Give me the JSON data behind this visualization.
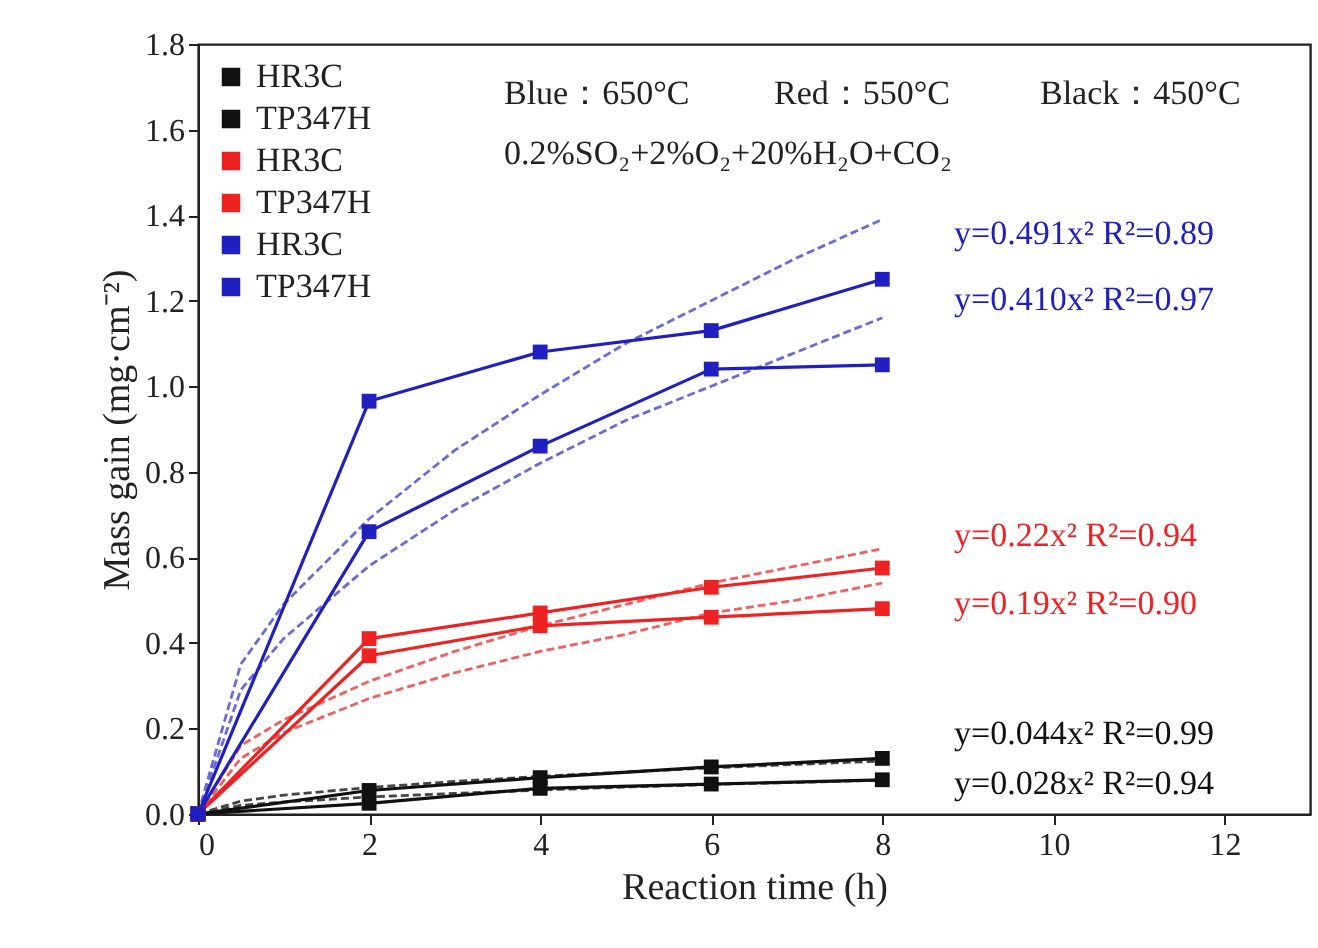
{
  "chart_data": {
    "type": "line",
    "xlabel": "Reaction time (h)",
    "ylabel": "Mass gain (mg·cm⁻²)",
    "x": [
      0,
      2,
      4,
      6,
      8
    ],
    "series": [
      {
        "name": "HR3C",
        "color": "#111111",
        "values": [
          0,
          0.025,
          0.06,
          0.07,
          0.08
        ]
      },
      {
        "name": "TP347H",
        "color": "#111111",
        "values": [
          0,
          0.055,
          0.085,
          0.11,
          0.13
        ]
      },
      {
        "name": "HR3C",
        "color": "#ee2222",
        "values": [
          0,
          0.37,
          0.44,
          0.46,
          0.48
        ]
      },
      {
        "name": "TP347H",
        "color": "#ee2222",
        "values": [
          0,
          0.41,
          0.47,
          0.53,
          0.575
        ]
      },
      {
        "name": "HR3C",
        "color": "#2020c0",
        "values": [
          0,
          0.66,
          0.86,
          1.04,
          1.05
        ]
      },
      {
        "name": "TP347H",
        "color": "#2020c0",
        "values": [
          0,
          0.965,
          1.08,
          1.13,
          1.25
        ]
      },
      {
        "type": "line",
        "color": "#6a6ad8",
        "line_style": "dashed",
        "marker": "none",
        "x": [
          0,
          0.5,
          1,
          2,
          3,
          4,
          5,
          6,
          7,
          8
        ],
        "values": [
          0,
          0.35,
          0.49,
          0.69,
          0.85,
          0.98,
          1.1,
          1.2,
          1.3,
          1.39
        ]
      },
      {
        "type": "line",
        "color": "#6a6ad8",
        "line_style": "dashed",
        "marker": "none",
        "x": [
          0,
          0.5,
          1,
          2,
          3,
          4,
          5,
          6,
          7,
          8
        ],
        "values": [
          0,
          0.29,
          0.41,
          0.58,
          0.71,
          0.82,
          0.92,
          1.0,
          1.08,
          1.16
        ]
      },
      {
        "type": "line",
        "color": "#f06060",
        "line_style": "dashed",
        "marker": "none",
        "x": [
          0,
          0.5,
          1,
          2,
          3,
          4,
          5,
          6,
          7,
          8
        ],
        "values": [
          0,
          0.16,
          0.22,
          0.31,
          0.38,
          0.44,
          0.49,
          0.54,
          0.58,
          0.62
        ]
      },
      {
        "type": "line",
        "color": "#f06060",
        "line_style": "dashed",
        "marker": "none",
        "x": [
          0,
          0.5,
          1,
          2,
          3,
          4,
          5,
          6,
          7,
          8
        ],
        "values": [
          0,
          0.13,
          0.19,
          0.27,
          0.33,
          0.38,
          0.42,
          0.47,
          0.5,
          0.54
        ]
      },
      {
        "type": "line",
        "color": "#444444",
        "line_style": "dashed",
        "marker": "none",
        "x": [
          0,
          0.5,
          1,
          2,
          3,
          4,
          5,
          6,
          7,
          8
        ],
        "values": [
          0,
          0.03,
          0.044,
          0.062,
          0.076,
          0.088,
          0.098,
          0.108,
          0.116,
          0.124
        ]
      },
      {
        "type": "line",
        "color": "#444444",
        "line_style": "dashed",
        "marker": "none",
        "x": [
          0,
          0.5,
          1,
          2,
          3,
          4,
          5,
          6,
          7,
          8
        ],
        "values": [
          0,
          0.02,
          0.028,
          0.04,
          0.048,
          0.056,
          0.063,
          0.069,
          0.074,
          0.079
        ]
      }
    ],
    "marker": "square",
    "line_style": "solid",
    "legend": "top left",
    "grid": false,
    "xlim": [
      0,
      13
    ],
    "xticks": [
      0,
      2,
      4,
      6,
      8,
      10,
      12
    ],
    "ylim": [
      0,
      1.8
    ],
    "yticks": [
      {
        "value": 0,
        "label": "0.0"
      },
      {
        "value": 0.2,
        "label": "0.2"
      },
      {
        "value": 0.4,
        "label": "0.4"
      },
      {
        "value": 0.6,
        "label": "0.6"
      },
      {
        "value": 0.8,
        "label": "0.8"
      },
      {
        "value": 1.0,
        "label": "1.0"
      },
      {
        "value": 1.2,
        "label": "1.2"
      },
      {
        "value": 1.4,
        "label": "1.4"
      },
      {
        "value": 1.6,
        "label": "1.6"
      },
      {
        "value": 1.8,
        "label": "1.8"
      }
    ],
    "annotations": [
      "Blue：650°C",
      "Red：550°C",
      "Black：450°C",
      "0.2%SO₂+2%O₂+20%H₂O+CO₂",
      "y=0.491x² R²=0.89",
      "y=0.410x² R²=0.97",
      "y=0.22x² R²=0.94",
      "y=0.19x² R²=0.90",
      "y=0.044x² R²=0.99",
      "y=0.028x² R²=0.94"
    ]
  }
}
